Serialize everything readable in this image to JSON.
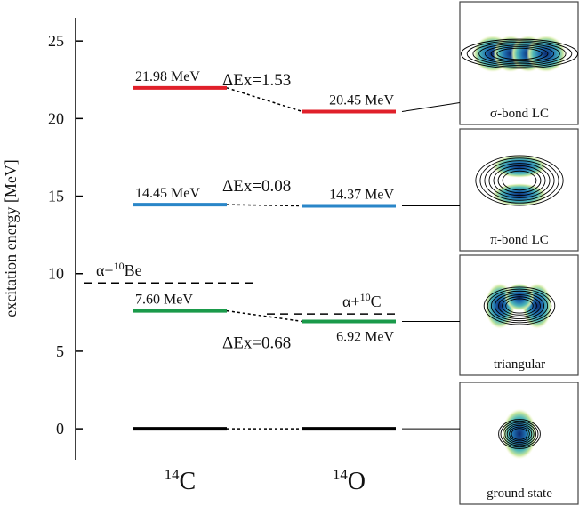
{
  "chart_data": {
    "type": "level",
    "y_label": "excitation energy [MeV]",
    "ylim": [
      -2,
      26.5
    ],
    "yticks": [
      0,
      5,
      10,
      15,
      20,
      25
    ],
    "nuclei": [
      {
        "mass": "14",
        "element": "C"
      },
      {
        "mass": "14",
        "element": "O"
      }
    ],
    "series": [
      {
        "values": [
          0,
          7.6,
          14.45,
          21.98
        ],
        "value_labels": [
          null,
          "7.60 MeV",
          "14.45 MeV",
          "21.98 MeV"
        ]
      },
      {
        "values": [
          0,
          6.92,
          14.37,
          20.45
        ],
        "value_labels": [
          null,
          "6.92 MeV",
          "14.37 MeV",
          "20.45 MeV"
        ]
      }
    ],
    "level_colors": [
      "#000000",
      "#1a9a4a",
      "#2a86c8",
      "#e0202a"
    ],
    "difference_labels": [
      null,
      "ΔEx=0.68",
      "ΔEx=0.08",
      "ΔEx=1.53"
    ],
    "thresholds": [
      {
        "prefix": "α+",
        "mass": "10",
        "element": "Be",
        "value": 9.4
      },
      {
        "prefix": "α+",
        "mass": "10",
        "element": "C",
        "value": 7.4
      }
    ],
    "panel_captions": [
      "ground state",
      "triangular",
      "π-bond LC",
      "σ-bond LC"
    ]
  }
}
